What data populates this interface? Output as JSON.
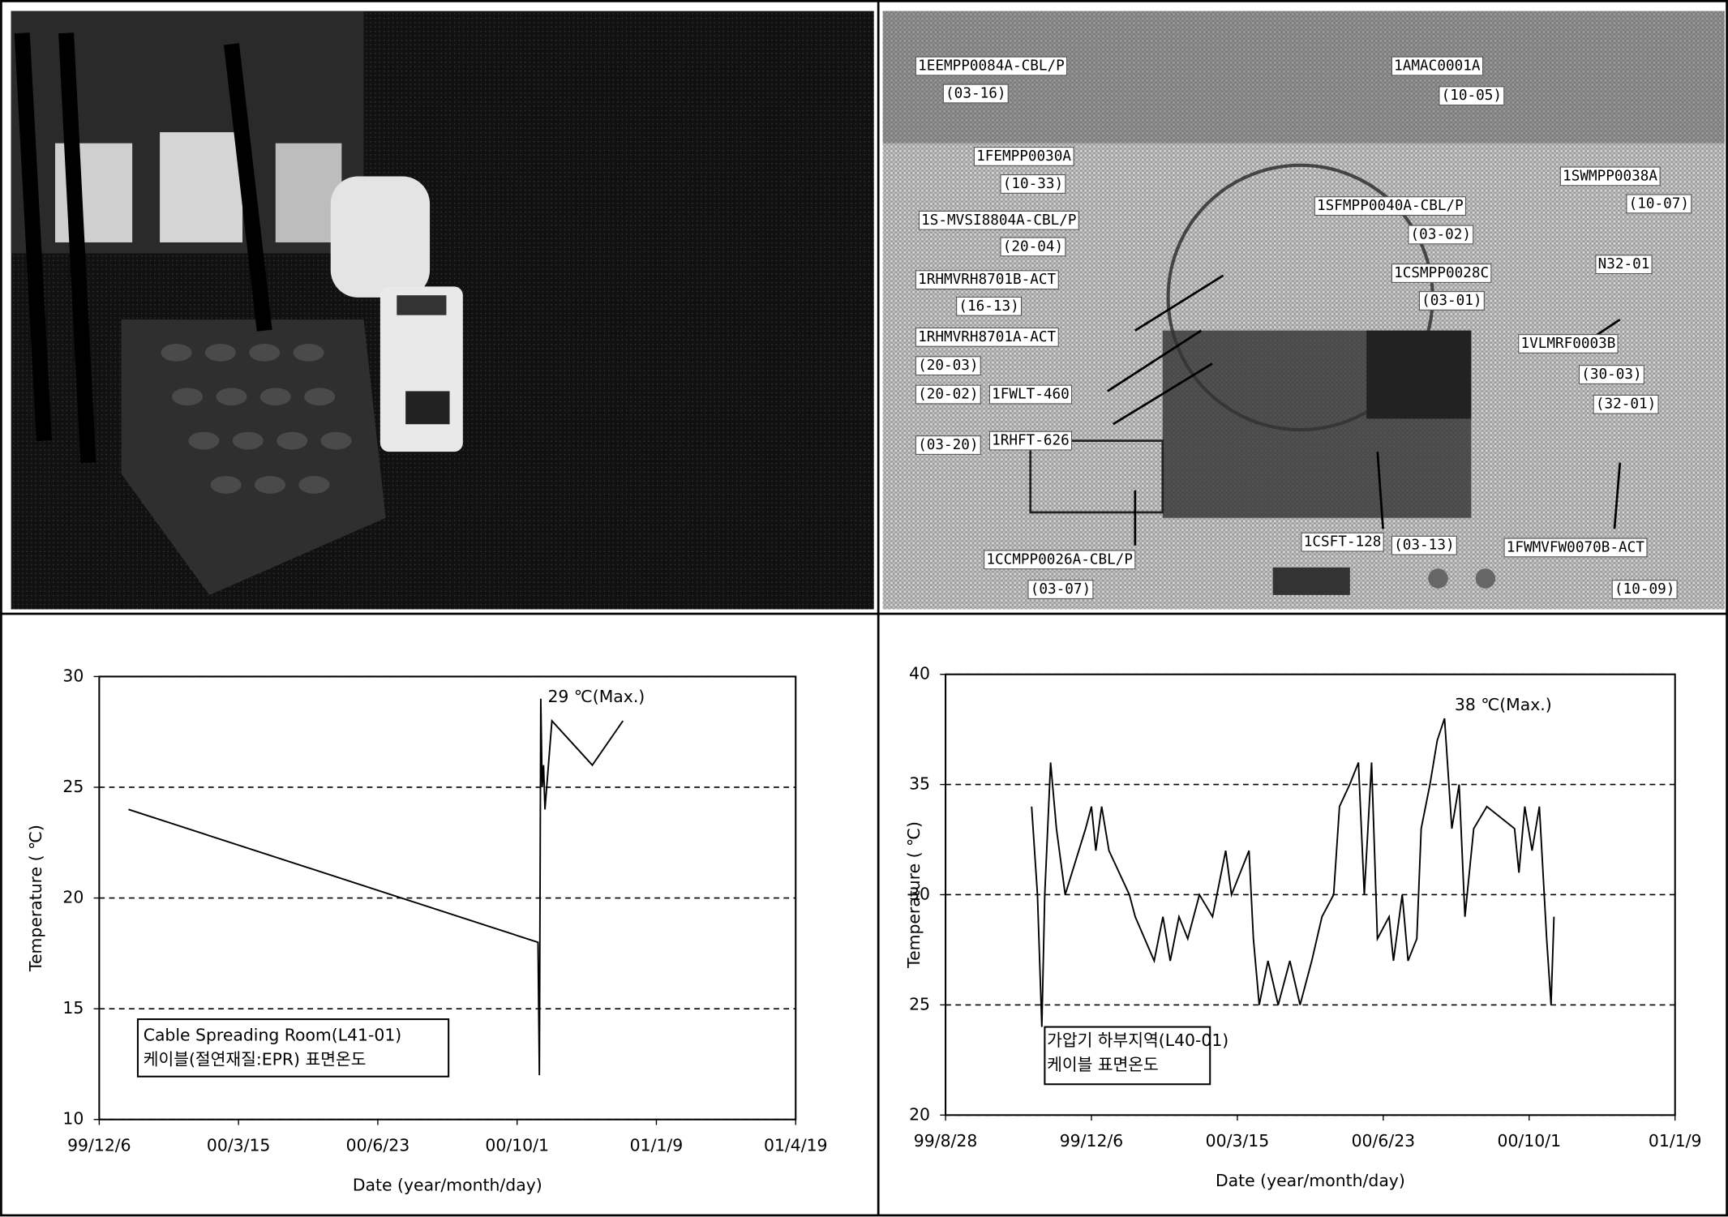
{
  "photo_labels": [
    "1EEMPP0084A-CBL/P",
    "(03-16)",
    "1AMAC0001A",
    "(10-05)",
    "1FEMPP0030A",
    "(10-33)",
    "1SWMPP0038A",
    "(10-07)",
    "1S-MVSI8804A-CBL/P",
    "1SFMPP0040A-CBL/P",
    "(20-04)",
    "(03-02)",
    "1RHMVRH8701B-ACT",
    "1CSMPP0028C",
    "N32-01",
    "(16-13)",
    "(03-01)",
    "1RHMVRH8701A-ACT",
    "1VLMRF0003B",
    "(20-03)",
    "(30-03)",
    "(20-02)",
    "1FWLT-460",
    "(32-01)",
    "(03-20)",
    "1RHFT-626",
    "1CCMPP0026A-CBL/P",
    "(03-07)",
    "1CSFT-128",
    "(03-13)",
    "1FWMVFW0070B-ACT",
    "(10-09)"
  ],
  "chart_data": [
    {
      "type": "line",
      "xlabel": "Date (year/month/day)",
      "ylabel": "Temperature ( ℃)",
      "color": "#000000",
      "grid": true,
      "annotations": [
        "29 ℃(Max.)",
        "Cable Spreading Room(L41-01)",
        "케이블(절연재질:EPR) 표면온도"
      ],
      "x": [
        "1999-12-27",
        "2000-10-16",
        "2000-10-17",
        "2000-10-18",
        "2000-10-19",
        "2000-10-20",
        "2000-10-21",
        "2000-10-26",
        "2000-11-24",
        "2000-12-16"
      ],
      "values": [
        24,
        18,
        12,
        29,
        25,
        26,
        24,
        28,
        26,
        28
      ],
      "xlim": [
        "1999-12-06",
        "2001-04-19"
      ],
      "xticks": [
        {
          "value": "1999-12-06",
          "label": "99/12/6"
        },
        {
          "value": "2000-03-15",
          "label": "00/3/15"
        },
        {
          "value": "2000-06-23",
          "label": "00/6/23"
        },
        {
          "value": "2000-10-01",
          "label": "00/10/1"
        },
        {
          "value": "2001-01-09",
          "label": "01/1/9"
        },
        {
          "value": "2001-04-19",
          "label": "01/4/19"
        }
      ],
      "ylim": [
        10,
        30
      ],
      "yticks": [
        10,
        15,
        20,
        25,
        30
      ]
    },
    {
      "type": "line",
      "xlabel": "Date (year/month/day)",
      "ylabel": "Temperature ( ℃)",
      "color": "#000000",
      "grid": true,
      "annotations": [
        "38 ℃(Max.)",
        "가압기 하부지역(L40-01)",
        "케이블 표면온도"
      ],
      "x": [
        "1999-10-26",
        "1999-10-30",
        "1999-11-02",
        "1999-11-04",
        "1999-11-08",
        "1999-11-12",
        "1999-11-18",
        "1999-12-02",
        "1999-12-06",
        "1999-12-09",
        "1999-12-13",
        "1999-12-18",
        "2000-01-01",
        "2000-01-05",
        "2000-01-18",
        "2000-01-24",
        "2000-01-29",
        "2000-02-04",
        "2000-02-10",
        "2000-02-18",
        "2000-02-27",
        "2000-03-07",
        "2000-03-11",
        "2000-03-23",
        "2000-03-26",
        "2000-03-30",
        "2000-04-05",
        "2000-04-12",
        "2000-04-20",
        "2000-04-27",
        "2000-05-05",
        "2000-05-12",
        "2000-05-20",
        "2000-05-24",
        "2000-05-31",
        "2000-06-06",
        "2000-06-10",
        "2000-06-15",
        "2000-06-19",
        "2000-06-27",
        "2000-06-30",
        "2000-07-06",
        "2000-07-10",
        "2000-07-16",
        "2000-07-19",
        "2000-07-25",
        "2000-07-30",
        "2000-08-04",
        "2000-08-09",
        "2000-08-14",
        "2000-08-18",
        "2000-08-24",
        "2000-09-02",
        "2000-09-21",
        "2000-09-24",
        "2000-09-28",
        "2000-10-03",
        "2000-10-08",
        "2000-10-13",
        "2000-10-16",
        "2000-10-18"
      ],
      "values": [
        34,
        30,
        24,
        30,
        36,
        33,
        30,
        33,
        34,
        32,
        34,
        32,
        30,
        29,
        27,
        29,
        27,
        29,
        28,
        30,
        29,
        32,
        30,
        32,
        28,
        25,
        27,
        25,
        27,
        25,
        27,
        29,
        30,
        34,
        35,
        36,
        30,
        36,
        28,
        29,
        27,
        30,
        27,
        28,
        33,
        35,
        37,
        38,
        33,
        35,
        29,
        33,
        34,
        33,
        31,
        34,
        32,
        34,
        28,
        25,
        29
      ],
      "xlim": [
        "1999-08-28",
        "2001-01-09"
      ],
      "xticks": [
        {
          "value": "1999-08-28",
          "label": "99/8/28"
        },
        {
          "value": "1999-12-06",
          "label": "99/12/6"
        },
        {
          "value": "2000-03-15",
          "label": "00/3/15"
        },
        {
          "value": "2000-06-23",
          "label": "00/6/23"
        },
        {
          "value": "2000-10-01",
          "label": "00/10/1"
        },
        {
          "value": "2001-01-09",
          "label": "01/1/9"
        }
      ],
      "ylim": [
        20,
        40
      ],
      "yticks": [
        20,
        25,
        30,
        35,
        40
      ]
    }
  ]
}
